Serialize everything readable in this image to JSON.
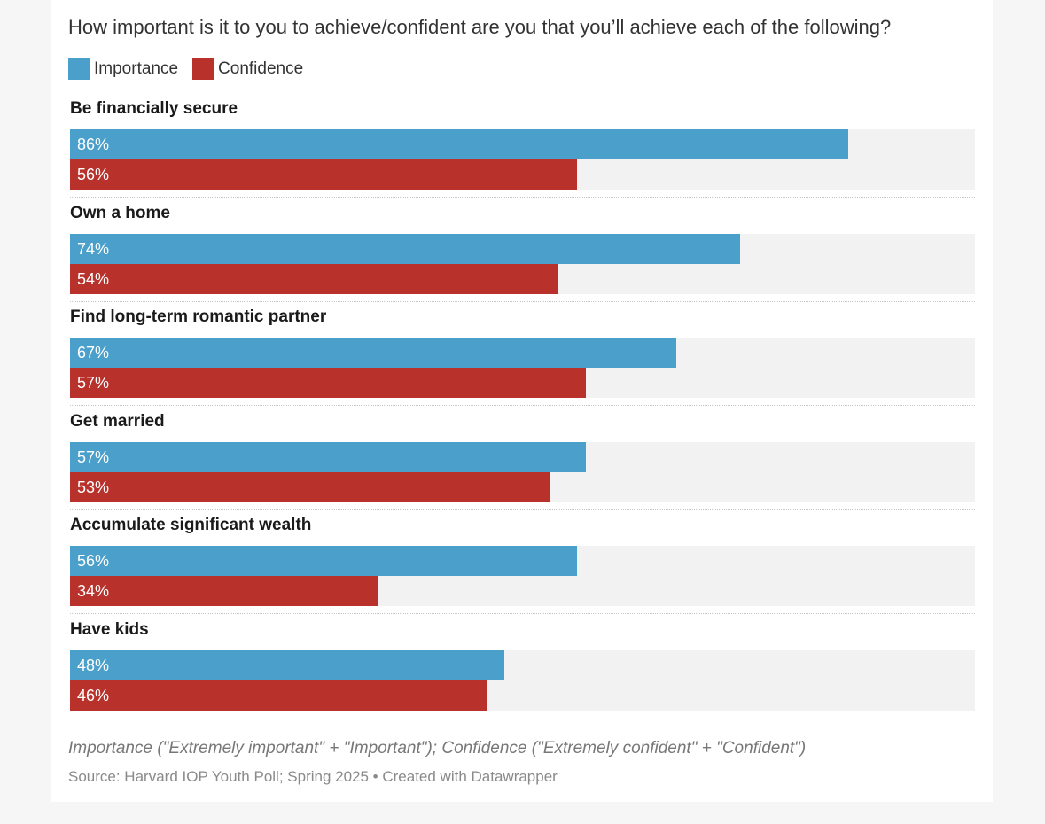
{
  "chart_data": {
    "type": "bar",
    "orientation": "horizontal",
    "title": "How important is it to you to achieve/confident are you that you’ll achieve each of the following?",
    "categories": [
      "Be financially secure",
      "Own a home",
      "Find long-term romantic partner",
      "Get married",
      "Accumulate significant wealth",
      "Have kids"
    ],
    "series": [
      {
        "name": "Importance",
        "color": "#4a9fcb",
        "values": [
          86,
          74,
          67,
          57,
          56,
          48
        ],
        "labels": [
          "86%",
          "74%",
          "67%",
          "57%",
          "56%",
          "48%"
        ]
      },
      {
        "name": "Confidence",
        "color": "#b8312b",
        "values": [
          56,
          54,
          57,
          53,
          34,
          46
        ],
        "labels": [
          "56%",
          "54%",
          "57%",
          "53%",
          "34%",
          "46%"
        ]
      }
    ],
    "xlim": [
      0,
      100
    ],
    "legend_position": "top-left",
    "note": "Importance (\"Extremely important\" + \"Important\"); Confidence (\"Extremely confident\" + \"Confident\")",
    "source": "Source: Harvard IOP Youth Poll; Spring 2025 • Created with Datawrapper"
  }
}
